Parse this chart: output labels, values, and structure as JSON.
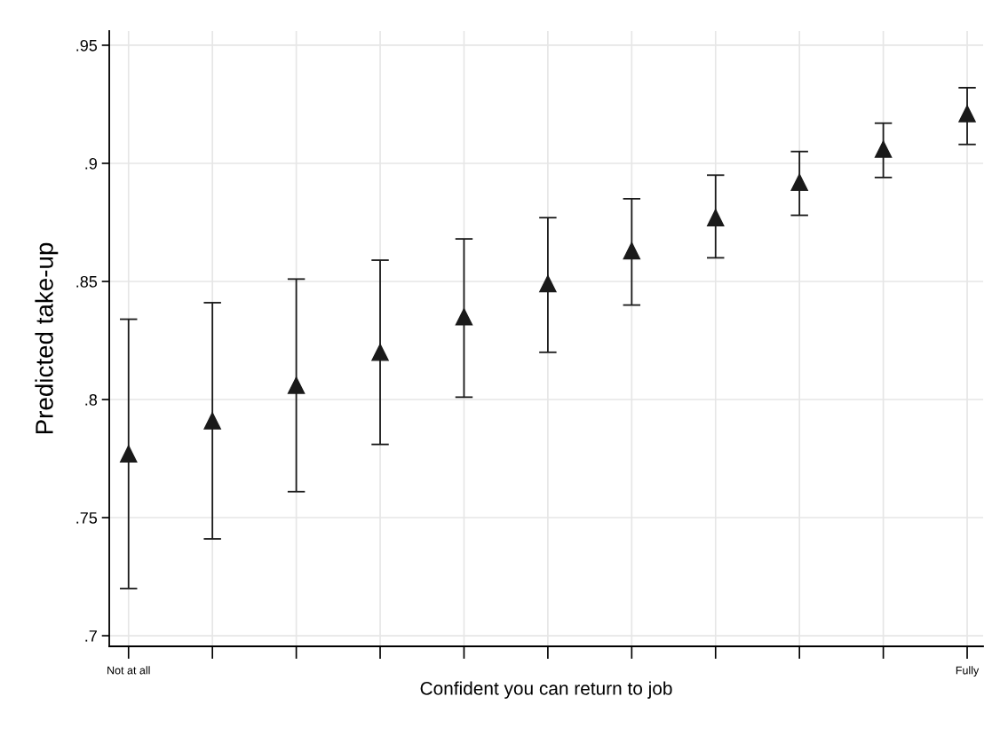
{
  "chart_data": {
    "type": "scatter",
    "xlabel": "Confident you can return to job",
    "ylabel": "Predicted take-up",
    "categories": [
      "Not at all",
      null,
      null,
      null,
      null,
      null,
      null,
      null,
      null,
      null,
      "Fully"
    ],
    "series": [
      {
        "color": "#1a1a1a",
        "values": [
          0.777,
          0.791,
          0.806,
          0.82,
          0.835,
          0.849,
          0.863,
          0.877,
          0.892,
          0.906,
          0.921
        ],
        "errors": [
          [
            0.72,
            0.834
          ],
          [
            0.741,
            0.841
          ],
          [
            0.761,
            0.851
          ],
          [
            0.781,
            0.859
          ],
          [
            0.801,
            0.868
          ],
          [
            0.82,
            0.877
          ],
          [
            0.84,
            0.885
          ],
          [
            0.86,
            0.895
          ],
          [
            0.878,
            0.905
          ],
          [
            0.894,
            0.917
          ],
          [
            0.908,
            0.932
          ]
        ]
      }
    ],
    "ylim": [
      0.6955,
      0.956
    ],
    "yticks": [
      {
        "value": 0.7,
        "label": ".7"
      },
      {
        "value": 0.75,
        "label": ".75"
      },
      {
        "value": 0.8,
        "label": ".8"
      },
      {
        "value": 0.85,
        "label": ".85"
      },
      {
        "value": 0.9,
        "label": ".9"
      },
      {
        "value": 0.95,
        "label": ".95"
      }
    ],
    "grid": true,
    "marker": "triangle"
  }
}
